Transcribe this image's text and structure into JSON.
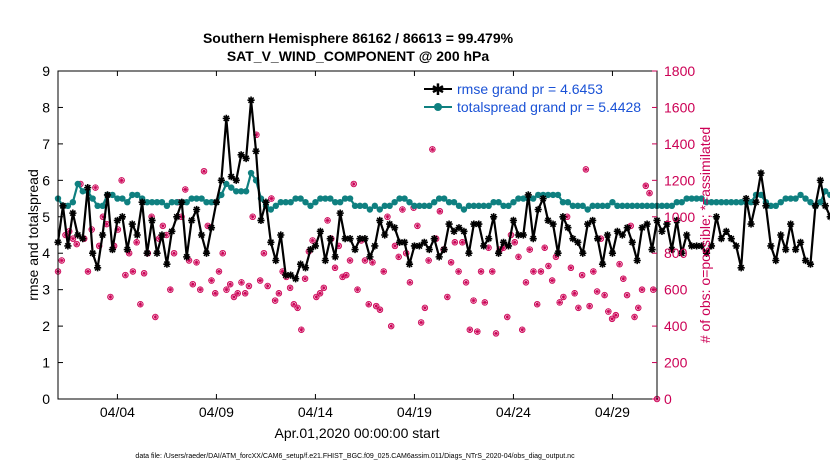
{
  "chart_data": {
    "type": "line",
    "title": "Southern Hemisphere 86162 / 86613 = 99.479%",
    "subtitle": "SAT_V_WIND_COMPONENT @ 200 hPa",
    "xlabel": "Apr.01,2020 00:00:00 start",
    "ylabel": "rmse and totalspread",
    "y2label": "# of obs: o=possible; *=assimilated",
    "footer": "data file: /Users/raeder/DAI/ATM_forcXX/CAM6_setup/f.e21.FHIST_BGC.f09_025.CAM6assim.011/Diags_NTrS_2020-04/obs_diag_output.nc",
    "xlim": [
      1,
      31.25
    ],
    "ylim": [
      0,
      9
    ],
    "y2lim": [
      0,
      1800
    ],
    "xticks": [
      4,
      9,
      14,
      19,
      24,
      29
    ],
    "xtick_labels": [
      "04/04",
      "04/09",
      "04/14",
      "04/19",
      "04/24",
      "04/29"
    ],
    "yticks": [
      "0",
      "1",
      "2",
      "3",
      "4",
      "5",
      "6",
      "7",
      "8",
      "9"
    ],
    "y2ticks": [
      "0",
      "200",
      "400",
      "600",
      "800",
      "1000",
      "1200",
      "1400",
      "1600",
      "1800"
    ],
    "colors": {
      "rmse": "#000000",
      "spread": "#0f8080",
      "obs": "#cc0055",
      "legend_text": "#1a52d6"
    },
    "series": [
      {
        "name": "rmse grand pr = 4.6453",
        "values": [
          4.3,
          5.3,
          4.2,
          5.1,
          4.5,
          4.4,
          5.8,
          4.0,
          3.6,
          4.5,
          5.6,
          4.1,
          4.9,
          5.0,
          4.1,
          4.8,
          4.5,
          5.4,
          4.0,
          4.9,
          4.0,
          4.5,
          3.7,
          4.6,
          5.0,
          5.4,
          3.9,
          4.9,
          5.2,
          4.5,
          4.0,
          4.7,
          5.4,
          6.0,
          7.7,
          6.1,
          6.0,
          6.7,
          6.6,
          8.2,
          6.8,
          4.9,
          5.4,
          4.3,
          3.8,
          4.5,
          3.4,
          3.4,
          3.3,
          3.7,
          3.6,
          4.1,
          4.2,
          4.6,
          3.8,
          4.4,
          3.9,
          5.1,
          4.4,
          4.4,
          4.1,
          4.4,
          4.4,
          3.9,
          4.2,
          4.9,
          4.5,
          4.8,
          4.7,
          4.3,
          4.3,
          3.7,
          4.2,
          4.2,
          4.3,
          4.1,
          4.4,
          3.9,
          4.1,
          4.8,
          4.6,
          4.7,
          4.6,
          4.0,
          4.8,
          4.8,
          4.2,
          4.4,
          5.0,
          4.0,
          4.3,
          4.2,
          4.9,
          4.5,
          4.5,
          5.6,
          4.4,
          5.2,
          5.5,
          4.9,
          4.8,
          4.0,
          5.0,
          4.7,
          4.4,
          4.3,
          4.0,
          4.8,
          4.9,
          4.4,
          3.7,
          4.5,
          4.0,
          4.6,
          4.5,
          4.7,
          4.3,
          3.8,
          4.7,
          4.8,
          4.1,
          4.9,
          4.6,
          4.8,
          4.1,
          4.9,
          4.0,
          4.5,
          4.2,
          4.2,
          4.2,
          4.0,
          4.2,
          5.0,
          4.4,
          4.6,
          4.4,
          4.2,
          3.6,
          5.5,
          4.8,
          5.4,
          6.2,
          5.3,
          4.2,
          3.8,
          4.5,
          4.1,
          4.8,
          4.1,
          4.3,
          3.8,
          3.7,
          5.3,
          6.0,
          5.3,
          5.0,
          5.0
        ],
        "x_start": 1.0,
        "x_step": 0.25
      },
      {
        "name": "totalspread grand pr = 5.4428",
        "values": [
          5.5,
          5.3,
          5.3,
          5.4,
          5.9,
          5.7,
          5.7,
          5.5,
          5.3,
          5.3,
          5.6,
          5.6,
          5.5,
          5.5,
          5.4,
          5.6,
          5.6,
          5.5,
          5.4,
          5.4,
          5.4,
          5.4,
          5.3,
          5.4,
          5.4,
          5.4,
          5.4,
          5.5,
          5.5,
          5.5,
          5.4,
          5.4,
          5.4,
          5.6,
          5.9,
          5.8,
          5.7,
          5.7,
          5.7,
          6.2,
          6.0,
          5.5,
          5.3,
          5.2,
          5.3,
          5.4,
          5.4,
          5.4,
          5.5,
          5.5,
          5.4,
          5.3,
          5.4,
          5.5,
          5.5,
          5.5,
          5.4,
          5.4,
          5.5,
          5.5,
          5.3,
          5.3,
          5.3,
          5.2,
          5.3,
          5.2,
          5.3,
          5.3,
          5.4,
          5.5,
          5.5,
          5.4,
          5.3,
          5.3,
          5.3,
          5.3,
          5.4,
          5.5,
          5.5,
          5.4,
          5.4,
          5.3,
          5.2,
          5.3,
          5.3,
          5.3,
          5.3,
          5.3,
          5.4,
          5.4,
          5.3,
          5.3,
          5.4,
          5.5,
          5.5,
          5.5,
          5.5,
          5.6,
          5.6,
          5.6,
          5.6,
          5.6,
          5.4,
          5.4,
          5.3,
          5.3,
          5.3,
          5.2,
          5.3,
          5.3,
          5.3,
          5.3,
          5.4,
          5.3,
          5.3,
          5.3,
          5.3,
          5.3,
          5.3,
          5.3,
          5.3,
          5.3,
          5.3,
          5.3,
          5.3,
          5.4,
          5.4,
          5.5,
          5.5,
          5.5,
          5.5,
          5.4,
          5.4,
          5.4,
          5.4,
          5.4,
          5.4,
          5.4,
          5.4,
          5.4,
          5.4,
          5.6,
          5.6,
          5.4,
          5.3,
          5.3,
          5.4,
          5.5,
          5.5,
          5.5,
          5.6,
          5.5,
          5.4,
          5.3,
          5.4,
          5.7,
          5.6,
          5.5,
          5.4,
          5.4
        ],
        "x_start": 1.0,
        "x_step": 0.25
      },
      {
        "name": "obs_counts",
        "axis": "right",
        "values": [
          700,
          760,
          900,
          920,
          880,
          850,
          1180,
          880,
          700,
          930,
          1160,
          840,
          1000,
          960,
          560,
          840,
          930,
          1200,
          680,
          800,
          700,
          860,
          520,
          690,
          800,
          1000,
          450,
          880,
          950,
          900,
          600,
          800,
          1080,
          1000,
          1150,
          760,
          630,
          750,
          600,
          1250,
          950,
          650,
          580,
          700,
          800,
          600,
          630,
          560,
          580,
          640,
          580,
          620,
          1000,
          1450,
          650,
          800,
          620,
          1100,
          540,
          580,
          700,
          670,
          610,
          520,
          500,
          380,
          660,
          810,
          870,
          560,
          580,
          610,
          980,
          880,
          720,
          840,
          670,
          680,
          760,
          1180,
          600,
          870,
          760,
          520,
          750,
          510,
          490,
          700,
          1000,
          400,
          840,
          780,
          1040,
          800,
          640,
          1050,
          950,
          420,
          500,
          760,
          1370,
          880,
          1030,
          820,
          560,
          750,
          860,
          700,
          860,
          640,
          380,
          540,
          370,
          700,
          530,
          830,
          700,
          360,
          820,
          830,
          450,
          900,
          860,
          780,
          380,
          640,
          820,
          700,
          520,
          700,
          830,
          730,
          650,
          780,
          530,
          560,
          1000,
          720,
          580,
          500,
          680,
          1260,
          510,
          700,
          590,
          880,
          570,
          480,
          440,
          460,
          740,
          660,
          570,
          950,
          450,
          500,
          600,
          1170,
          1130,
          600,
          0
        ]
      }
    ]
  }
}
